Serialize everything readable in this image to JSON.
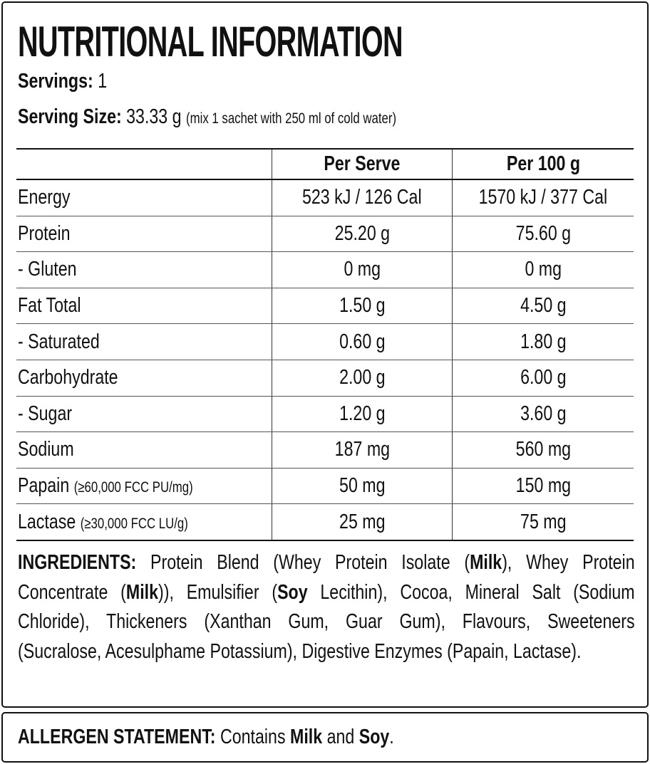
{
  "title": "NUTRITIONAL INFORMATION",
  "servings": {
    "label": "Servings:",
    "value": "1"
  },
  "serving_size": {
    "label": "Serving Size:",
    "value": "33.33 g",
    "note": "(mix 1 sachet with 250 ml of cold water)"
  },
  "table": {
    "headers": [
      "",
      "Per Serve",
      "Per 100 g"
    ],
    "rows": [
      {
        "name": "Energy",
        "note": "",
        "per_serve": "523 kJ / 126 Cal",
        "per_100g": "1570 kJ / 377 Cal"
      },
      {
        "name": "Protein",
        "note": "",
        "per_serve": "25.20 g",
        "per_100g": "75.60 g"
      },
      {
        "name": "- Gluten",
        "note": "",
        "per_serve": "0 mg",
        "per_100g": "0 mg"
      },
      {
        "name": "Fat Total",
        "note": "",
        "per_serve": "1.50 g",
        "per_100g": "4.50 g"
      },
      {
        "name": "- Saturated",
        "note": "",
        "per_serve": "0.60 g",
        "per_100g": "1.80 g"
      },
      {
        "name": "Carbohydrate",
        "note": "",
        "per_serve": "2.00 g",
        "per_100g": "6.00 g"
      },
      {
        "name": "- Sugar",
        "note": "",
        "per_serve": "1.20 g",
        "per_100g": "3.60 g"
      },
      {
        "name": "Sodium",
        "note": "",
        "per_serve": "187 mg",
        "per_100g": "560 mg"
      },
      {
        "name": "Papain",
        "note": "(≥60,000 FCC PU/mg)",
        "per_serve": "50 mg",
        "per_100g": "150 mg"
      },
      {
        "name": "Lactase",
        "note": "(≥30,000 FCC LU/g)",
        "per_serve": "25 mg",
        "per_100g": "75 mg"
      }
    ]
  },
  "ingredients": {
    "label": "INGREDIENTS:",
    "segments": [
      " Protein Blend (Whey Protein Isolate (",
      "Milk",
      "), Whey Protein Concentrate (",
      "Milk",
      ")), Emulsifier (",
      "Soy",
      " Lecithin), Cocoa, Mineral Salt (Sodium Chloride), Thickeners (Xanthan Gum, Guar Gum), Flavours, Sweeteners (Sucralose, Acesulphame Potassium), Digestive Enzymes (Papain, Lactase)."
    ]
  },
  "allergen": {
    "label": "ALLERGEN STATEMENT:",
    "segments": [
      " Contains ",
      "Milk",
      " and ",
      "Soy",
      "."
    ]
  }
}
